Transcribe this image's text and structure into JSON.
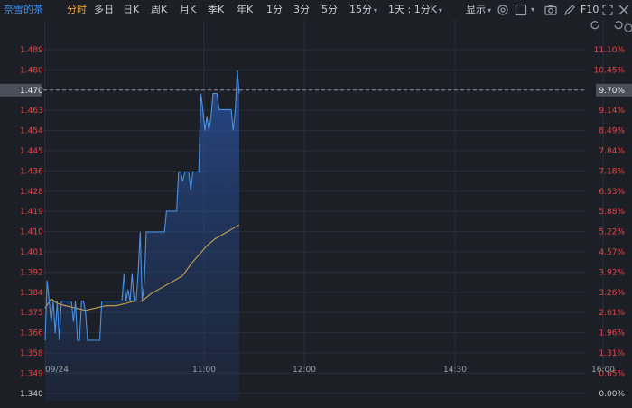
{
  "toolbar": {
    "stock_name": "奈雪的茶",
    "tabs": [
      {
        "label": "分时",
        "active": true
      },
      {
        "label": "多日"
      },
      {
        "label": "日K"
      },
      {
        "label": "周K"
      },
      {
        "label": "月K"
      },
      {
        "label": "季K"
      },
      {
        "label": "年K"
      },
      {
        "label": "1分"
      },
      {
        "label": "3分"
      },
      {
        "label": "5分"
      },
      {
        "label": "15分"
      },
      {
        "label": "1天 : 1分K"
      }
    ],
    "display_label": "显示",
    "f10_label": "F10",
    "icons": [
      "settings-icon",
      "checkbox-icon",
      "camera-icon",
      "edit-icon",
      "expand-icon",
      "close-icon"
    ]
  },
  "chart_data": {
    "type": "line",
    "x_ticks": [
      "09/24",
      "11:00",
      "12:00",
      "14:30",
      "16:00"
    ],
    "y_left_ticks": [
      "1.489",
      "1.480",
      "1.470",
      "1.463",
      "1.454",
      "1.445",
      "1.436",
      "1.428",
      "1.419",
      "1.410",
      "1.401",
      "1.392",
      "1.384",
      "1.375",
      "1.366",
      "1.358",
      "1.349",
      "1.340"
    ],
    "y_right_ticks": [
      "11.10%",
      "10.45%",
      "9.70%",
      "9.14%",
      "8.49%",
      "7.84%",
      "7.18%",
      "6.53%",
      "5.88%",
      "5.22%",
      "4.57%",
      "3.92%",
      "3.26%",
      "2.61%",
      "1.96%",
      "1.31%",
      "0.65%",
      "0.00%"
    ],
    "ylim": [
      1.34,
      1.489
    ],
    "current_price": "1.470",
    "current_pct": "9.70%",
    "series": [
      {
        "role": "price",
        "color": "#4a90e2",
        "points": [
          [
            0,
            1.363
          ],
          [
            1,
            1.389
          ],
          [
            2,
            1.38
          ],
          [
            3,
            1.371
          ],
          [
            4,
            1.38
          ],
          [
            5,
            1.366
          ],
          [
            6,
            1.38
          ],
          [
            7,
            1.363
          ],
          [
            8,
            1.38
          ],
          [
            9,
            1.38
          ],
          [
            10,
            1.38
          ],
          [
            11,
            1.38
          ],
          [
            12,
            1.38
          ],
          [
            13,
            1.38
          ],
          [
            14,
            1.371
          ],
          [
            15,
            1.38
          ],
          [
            16,
            1.363
          ],
          [
            17,
            1.363
          ],
          [
            18,
            1.38
          ],
          [
            19,
            1.38
          ],
          [
            20,
            1.375
          ],
          [
            21,
            1.363
          ],
          [
            22,
            1.363
          ],
          [
            23,
            1.363
          ],
          [
            24,
            1.363
          ],
          [
            25,
            1.363
          ],
          [
            26,
            1.363
          ],
          [
            27,
            1.363
          ],
          [
            28,
            1.38
          ],
          [
            29,
            1.38
          ],
          [
            30,
            1.38
          ],
          [
            31,
            1.38
          ],
          [
            32,
            1.38
          ],
          [
            33,
            1.38
          ],
          [
            34,
            1.38
          ],
          [
            35,
            1.38
          ],
          [
            36,
            1.38
          ],
          [
            37,
            1.38
          ],
          [
            38,
            1.38
          ],
          [
            39,
            1.392
          ],
          [
            40,
            1.38
          ],
          [
            41,
            1.385
          ],
          [
            42,
            1.38
          ],
          [
            43,
            1.392
          ],
          [
            44,
            1.38
          ],
          [
            45,
            1.38
          ],
          [
            46,
            1.392
          ],
          [
            47,
            1.41
          ],
          [
            48,
            1.38
          ],
          [
            49,
            1.388
          ],
          [
            50,
            1.41
          ],
          [
            51,
            1.41
          ],
          [
            52,
            1.41
          ],
          [
            53,
            1.41
          ],
          [
            54,
            1.41
          ],
          [
            55,
            1.41
          ],
          [
            56,
            1.41
          ],
          [
            57,
            1.41
          ],
          [
            58,
            1.41
          ],
          [
            59,
            1.41
          ],
          [
            60,
            1.419
          ],
          [
            61,
            1.419
          ],
          [
            62,
            1.419
          ],
          [
            63,
            1.419
          ],
          [
            64,
            1.419
          ],
          [
            65,
            1.419
          ],
          [
            66,
            1.436
          ],
          [
            67,
            1.436
          ],
          [
            68,
            1.432
          ],
          [
            69,
            1.436
          ],
          [
            70,
            1.436
          ],
          [
            71,
            1.436
          ],
          [
            72,
            1.428
          ],
          [
            73,
            1.436
          ],
          [
            74,
            1.436
          ],
          [
            75,
            1.436
          ],
          [
            76,
            1.436
          ],
          [
            77,
            1.47
          ],
          [
            78,
            1.463
          ],
          [
            79,
            1.454
          ],
          [
            80,
            1.46
          ],
          [
            81,
            1.454
          ],
          [
            82,
            1.46
          ],
          [
            83,
            1.47
          ],
          [
            84,
            1.47
          ],
          [
            85,
            1.47
          ],
          [
            86,
            1.463
          ],
          [
            87,
            1.463
          ],
          [
            88,
            1.463
          ],
          [
            89,
            1.463
          ],
          [
            90,
            1.463
          ],
          [
            91,
            1.463
          ],
          [
            92,
            1.463
          ],
          [
            93,
            1.454
          ],
          [
            94,
            1.463
          ],
          [
            95,
            1.48
          ],
          [
            96,
            1.47
          ]
        ]
      },
      {
        "role": "average",
        "color": "#c9a24a",
        "points": [
          [
            0,
            1.377
          ],
          [
            3,
            1.381
          ],
          [
            6,
            1.379
          ],
          [
            10,
            1.378
          ],
          [
            15,
            1.377
          ],
          [
            20,
            1.376
          ],
          [
            25,
            1.377
          ],
          [
            30,
            1.378
          ],
          [
            35,
            1.378
          ],
          [
            40,
            1.379
          ],
          [
            44,
            1.38
          ],
          [
            48,
            1.38
          ],
          [
            52,
            1.383
          ],
          [
            56,
            1.385
          ],
          [
            60,
            1.387
          ],
          [
            64,
            1.389
          ],
          [
            68,
            1.391
          ],
          [
            72,
            1.396
          ],
          [
            76,
            1.4
          ],
          [
            80,
            1.404
          ],
          [
            84,
            1.407
          ],
          [
            88,
            1.409
          ],
          [
            92,
            1.411
          ],
          [
            96,
            1.413
          ]
        ]
      }
    ],
    "x_minutes_total": 330,
    "colors": {
      "up": "#e04848",
      "neutral": "#c9ccd2",
      "grid": "#2a2e36"
    }
  }
}
